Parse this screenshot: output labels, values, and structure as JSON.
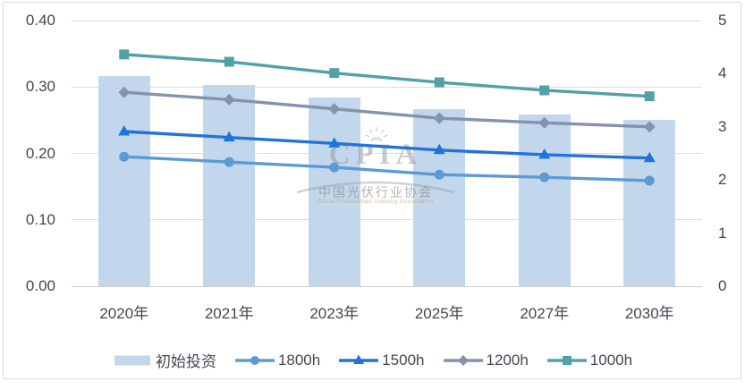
{
  "chart_data": {
    "type": "bar+line",
    "categories": [
      "2020年",
      "2021年",
      "2023年",
      "2025年",
      "2027年",
      "2030年"
    ],
    "left_axis": {
      "ticks": [
        "0.00",
        "0.10",
        "0.20",
        "0.30",
        "0.40"
      ],
      "min": 0,
      "max": 0.4
    },
    "right_axis": {
      "ticks": [
        "0",
        "1",
        "2",
        "3",
        "4",
        "5"
      ],
      "min": 0,
      "max": 5
    },
    "grid": true,
    "legend_position": "bottom",
    "bar_series": {
      "name": "初始投资",
      "axis": "right",
      "color": "#c3d7ec",
      "values": [
        3.96,
        3.78,
        3.55,
        3.34,
        3.24,
        3.13
      ]
    },
    "line_series": [
      {
        "name": "1800h",
        "axis": "left",
        "marker": "circle",
        "color": "#5b9bd5",
        "values": [
          0.195,
          0.187,
          0.179,
          0.168,
          0.164,
          0.159
        ]
      },
      {
        "name": "1500h",
        "axis": "left",
        "marker": "triangle",
        "color": "#2173dc",
        "values": [
          0.233,
          0.224,
          0.215,
          0.205,
          0.198,
          0.193
        ]
      },
      {
        "name": "1200h",
        "axis": "left",
        "marker": "diamond",
        "color": "#8392ad",
        "values": [
          0.292,
          0.281,
          0.267,
          0.253,
          0.246,
          0.24
        ]
      },
      {
        "name": "1000h",
        "axis": "left",
        "marker": "square",
        "color": "#52a1a6",
        "values": [
          0.349,
          0.338,
          0.321,
          0.307,
          0.295,
          0.286
        ]
      }
    ],
    "legend": [
      "初始投资",
      "1800h",
      "1500h",
      "1200h",
      "1000h"
    ]
  },
  "watermark": {
    "logo": "CPIA",
    "cn": "中国光伏行业协会",
    "en": "China Photovoltaic Industry Association"
  },
  "colors": {
    "grid": "#dcdcdc",
    "frame": "#dadde2",
    "axis_text": "#43474f"
  }
}
